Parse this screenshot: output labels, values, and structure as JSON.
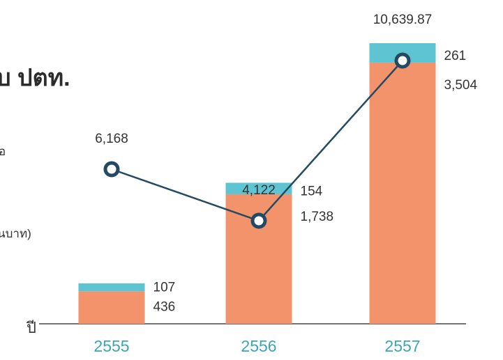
{
  "title_fragment": "บ ปตท.",
  "side_text": [
    "อ",
    "นบาท)"
  ],
  "colors": {
    "bottom_segment": "#f2936c",
    "top_segment": "#5ec4d1",
    "line": "#244a63",
    "marker_fill": "#ffffff",
    "category_text": "#3aa6b4",
    "axis": "#444444"
  },
  "chart_data": {
    "type": "bar",
    "stacked": true,
    "xlabel": "ปี",
    "ylabel": "",
    "categories": [
      "2555",
      "2556",
      "2557"
    ],
    "series": [
      {
        "name": "",
        "values": [
          436,
          1738,
          3504
        ],
        "labels": [
          "436",
          "1,738",
          "3,504"
        ]
      },
      {
        "name": "",
        "values": [
          107,
          154,
          261
        ],
        "labels": [
          "107",
          "154",
          "261"
        ]
      }
    ],
    "totals": {
      "values": [
        null,
        null,
        10639.87
      ],
      "labels": [
        "",
        "",
        "10,639.87"
      ]
    },
    "line_series": {
      "name": "",
      "values": [
        6168,
        4122,
        10639.87
      ],
      "labels": [
        "6,168",
        "4,122",
        ""
      ]
    },
    "grid": false,
    "legend": "none"
  }
}
